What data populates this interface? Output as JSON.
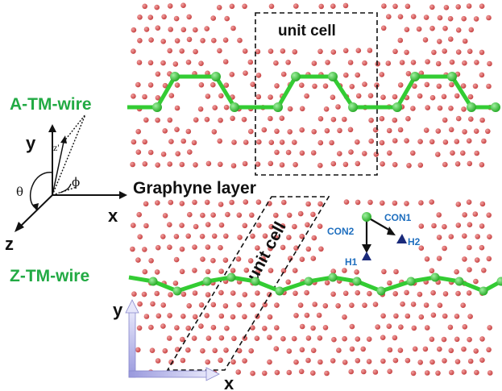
{
  "labels": {
    "a_wire": "A-TM-wire",
    "z_wire": "Z-TM-wire",
    "graphyne": "Graphyne layer",
    "unit_cell_top": "unit cell",
    "unit_cell_bottom": "unit cell",
    "con1": "CON1",
    "con2": "CON2",
    "h1": "H1",
    "h2": "H2"
  },
  "axes_3d": {
    "x": "x",
    "y": "y",
    "z": "z",
    "z_prime": "z'",
    "theta": "θ",
    "phi": "ϕ"
  },
  "axes_2d": {
    "x": "x",
    "y": "y"
  },
  "colors": {
    "atom": "#d9534f",
    "atom_edge": "#a83232",
    "wire": "#33cc33",
    "wire_node": "#2fb82f",
    "label_green": "#22aa44",
    "label_blue": "#1f6fbf",
    "marker": "#1a2a7a",
    "axis_2d": "#b8b8ee"
  }
}
